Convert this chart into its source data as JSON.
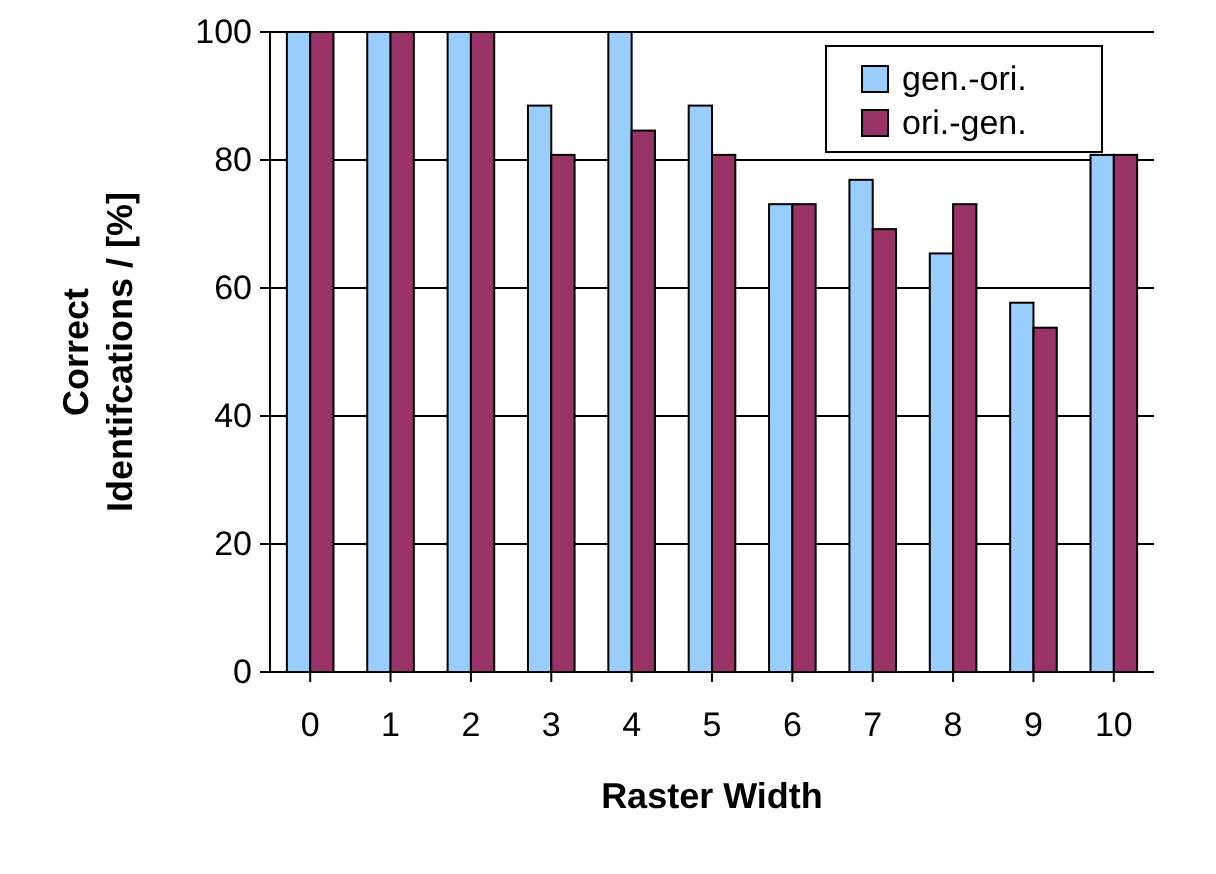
{
  "chart_data": {
    "type": "bar",
    "xlabel": "Raster Width",
    "ylabel": "Correct\nIdentifcations / [%]",
    "categories": [
      "0",
      "1",
      "2",
      "3",
      "4",
      "5",
      "6",
      "7",
      "8",
      "9",
      "10"
    ],
    "series": [
      {
        "name": "gen.-ori.",
        "color": "#99ccff",
        "values": [
          100,
          100,
          100,
          88.5,
          100,
          88.5,
          73.1,
          76.9,
          65.4,
          57.7,
          80.8
        ]
      },
      {
        "name": "ori.-gen.",
        "color": "#993366",
        "values": [
          100,
          100,
          100,
          80.8,
          84.6,
          80.8,
          73.1,
          69.2,
          73.1,
          53.8,
          80.8
        ]
      }
    ],
    "ylim": [
      0,
      100
    ],
    "yticks": [
      0,
      20,
      40,
      60,
      80,
      100
    ],
    "grid": "y",
    "legend": "top right"
  }
}
